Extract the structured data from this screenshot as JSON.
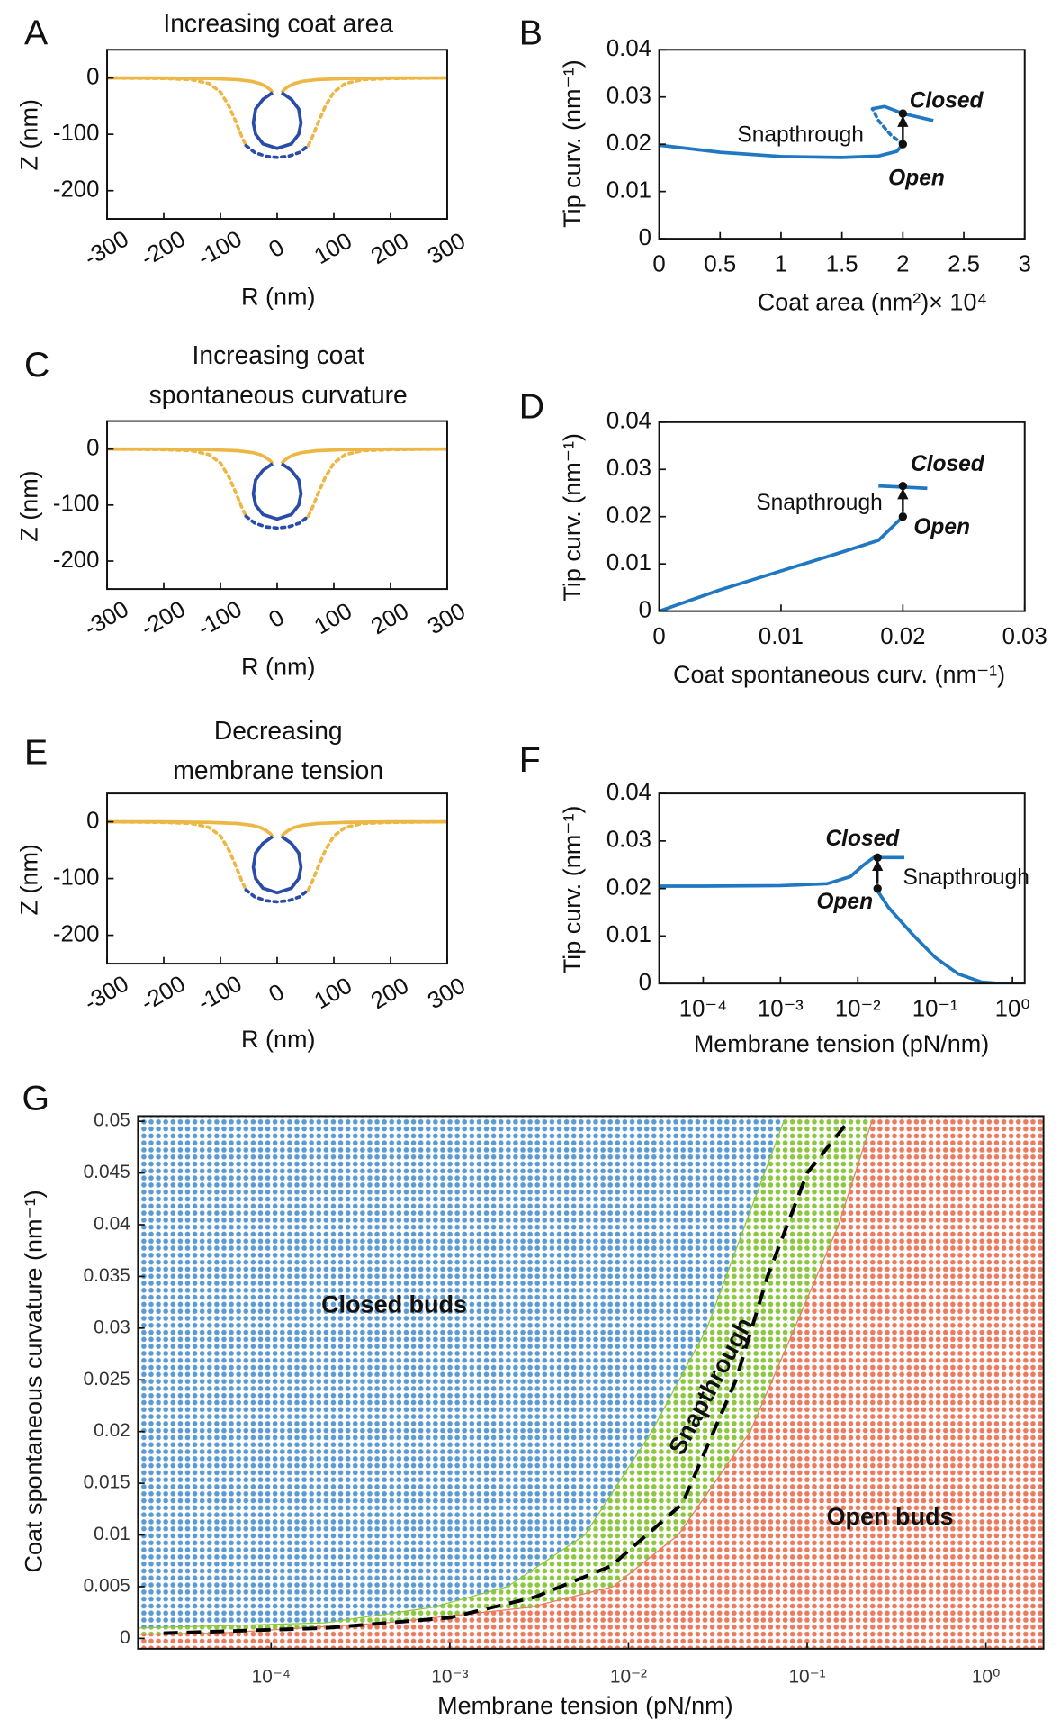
{
  "chart_data": [
    {
      "type": "line",
      "panel": "A",
      "title": [
        "Increasing coat area"
      ],
      "xlabel": "R (nm)",
      "ylabel": "Z (nm)",
      "xlim": [
        -300,
        300
      ],
      "ylim": [
        -250,
        50
      ],
      "xticks": [
        -300,
        -200,
        -100,
        0,
        100,
        200,
        300
      ],
      "yticks": [
        -200,
        -100,
        0
      ],
      "series": [
        {
          "color": "#edb746",
          "dashed": false,
          "x": [
            -300,
            -200,
            -120,
            -70,
            -45,
            -30,
            -20,
            -12,
            -8,
            null,
            8,
            12,
            20,
            30,
            45,
            70,
            120,
            200,
            300
          ],
          "values": [
            0,
            0,
            -1,
            -3,
            -6,
            -10,
            -15,
            -21,
            -26,
            null,
            -26,
            -21,
            -15,
            -10,
            -6,
            -3,
            -1,
            0,
            0
          ]
        },
        {
          "color": "#edb746",
          "dashed": true,
          "x": [
            -300,
            -200,
            -150,
            -120,
            -100,
            -85,
            -72,
            -62,
            -55,
            null,
            55,
            62,
            72,
            85,
            100,
            120,
            150,
            200,
            300
          ],
          "values": [
            0,
            -1,
            -3,
            -10,
            -25,
            -50,
            -80,
            -105,
            -120,
            null,
            -120,
            -105,
            -80,
            -50,
            -25,
            -10,
            -3,
            -1,
            0
          ]
        },
        {
          "color": "#2b4ba8",
          "dashed": false,
          "x": [
            -8,
            -25,
            -38,
            -42,
            -38,
            -25,
            0,
            25,
            38,
            42,
            38,
            25,
            8
          ],
          "values": [
            -26,
            -38,
            -55,
            -80,
            -100,
            -117,
            -125,
            -117,
            -100,
            -80,
            -55,
            -38,
            -26
          ]
        },
        {
          "color": "#2b4ba8",
          "dashed": true,
          "x": [
            -55,
            -40,
            -20,
            0,
            20,
            40,
            55
          ],
          "values": [
            -120,
            -132,
            -139,
            -141,
            -139,
            -132,
            -120
          ]
        }
      ]
    },
    {
      "type": "line",
      "panel": "B",
      "xlabel": "Coat area (nm²)× 10⁴",
      "ylabel": "Tip curv. (nm⁻¹)",
      "xlim": [
        0,
        3
      ],
      "ylim": [
        0,
        0.04
      ],
      "xticks": [
        0,
        0.5,
        1,
        1.5,
        2,
        2.5,
        3
      ],
      "yticks": [
        0,
        0.01,
        0.02,
        0.03,
        0.04
      ],
      "series": [
        {
          "color": "#1f78c1",
          "dashed": false,
          "x": [
            0,
            0.5,
            1,
            1.5,
            1.8,
            1.95,
            2.0
          ],
          "values": [
            0.0198,
            0.0183,
            0.0174,
            0.0172,
            0.0175,
            0.0185,
            0.02
          ]
        },
        {
          "color": "#1f78c1",
          "dashed": true,
          "x": [
            2.0,
            1.9,
            1.8,
            1.75
          ],
          "values": [
            0.02,
            0.022,
            0.025,
            0.0275
          ]
        },
        {
          "color": "#1f78c1",
          "dashed": false,
          "x": [
            1.75,
            1.85,
            2.0,
            2.25
          ],
          "values": [
            0.0275,
            0.028,
            0.0265,
            0.025
          ]
        }
      ],
      "markers": {
        "x": [
          2,
          2
        ],
        "values": [
          0.02,
          0.0265
        ]
      },
      "annotations": [
        "Closed",
        "Snapthrough",
        "Open"
      ]
    },
    {
      "type": "line",
      "panel": "C",
      "title": [
        "Increasing coat",
        "spontaneous curvature"
      ],
      "xlabel": "R (nm)",
      "ylabel": "Z (nm)",
      "xlim": [
        -300,
        300
      ],
      "ylim": [
        -250,
        50
      ],
      "xticks": [
        -300,
        -200,
        -100,
        0,
        100,
        200,
        300
      ],
      "yticks": [
        -200,
        -100,
        0
      ],
      "series": [
        {
          "color": "#edb746",
          "dashed": false,
          "x": [
            -300,
            -200,
            -120,
            -70,
            -45,
            -30,
            -20,
            -12,
            -8,
            null,
            8,
            12,
            20,
            30,
            45,
            70,
            120,
            200,
            300
          ],
          "values": [
            0,
            0,
            -1,
            -3,
            -6,
            -10,
            -15,
            -21,
            -26,
            null,
            -26,
            -21,
            -15,
            -10,
            -6,
            -3,
            -1,
            0,
            0
          ]
        },
        {
          "color": "#edb746",
          "dashed": true,
          "x": [
            -300,
            -200,
            -150,
            -120,
            -100,
            -85,
            -72,
            -62,
            -55,
            null,
            55,
            62,
            72,
            85,
            100,
            120,
            150,
            200,
            300
          ],
          "values": [
            0,
            -1,
            -3,
            -10,
            -25,
            -50,
            -80,
            -105,
            -120,
            null,
            -120,
            -105,
            -80,
            -50,
            -25,
            -10,
            -3,
            -1,
            0
          ]
        },
        {
          "color": "#2b4ba8",
          "dashed": false,
          "x": [
            -8,
            -25,
            -38,
            -42,
            -38,
            -25,
            0,
            25,
            38,
            42,
            38,
            25,
            8
          ],
          "values": [
            -26,
            -38,
            -55,
            -80,
            -100,
            -117,
            -125,
            -117,
            -100,
            -80,
            -55,
            -38,
            -26
          ]
        },
        {
          "color": "#2b4ba8",
          "dashed": true,
          "x": [
            -55,
            -40,
            -20,
            0,
            20,
            40,
            55
          ],
          "values": [
            -120,
            -132,
            -139,
            -141,
            -139,
            -132,
            -120
          ]
        }
      ]
    },
    {
      "type": "line",
      "panel": "D",
      "xlabel": "Coat spontaneous curv. (nm⁻¹)",
      "ylabel": "Tip curv. (nm⁻¹)",
      "xlim": [
        0,
        0.03
      ],
      "ylim": [
        0,
        0.04
      ],
      "xticks": [
        0,
        0.01,
        0.02,
        0.03
      ],
      "yticks": [
        0,
        0.01,
        0.02,
        0.03,
        0.04
      ],
      "series": [
        {
          "color": "#1f78c1",
          "dashed": false,
          "x": [
            0,
            0.005,
            0.01,
            0.015,
            0.018,
            0.02
          ],
          "values": [
            0,
            0.0045,
            0.0085,
            0.0125,
            0.015,
            0.02
          ]
        },
        {
          "color": "#1f78c1",
          "dashed": false,
          "x": [
            0.018,
            0.022
          ],
          "values": [
            0.0265,
            0.026
          ]
        }
      ],
      "markers": {
        "x": [
          0.02,
          0.02
        ],
        "values": [
          0.02,
          0.0265
        ]
      },
      "annotations": [
        "Closed",
        "Snapthrough",
        "Open"
      ]
    },
    {
      "type": "line",
      "panel": "E",
      "title": [
        "Decreasing",
        "membrane tension"
      ],
      "xlabel": "R (nm)",
      "ylabel": "Z (nm)",
      "xlim": [
        -300,
        300
      ],
      "ylim": [
        -250,
        50
      ],
      "xticks": [
        -300,
        -200,
        -100,
        0,
        100,
        200,
        300
      ],
      "yticks": [
        -200,
        -100,
        0
      ],
      "series": [
        {
          "color": "#edb746",
          "dashed": false,
          "x": [
            -300,
            -200,
            -120,
            -70,
            -45,
            -30,
            -20,
            -12,
            -8,
            null,
            8,
            12,
            20,
            30,
            45,
            70,
            120,
            200,
            300
          ],
          "values": [
            0,
            0,
            -1,
            -3,
            -6,
            -10,
            -15,
            -21,
            -26,
            null,
            -26,
            -21,
            -15,
            -10,
            -6,
            -3,
            -1,
            0,
            0
          ]
        },
        {
          "color": "#edb746",
          "dashed": true,
          "x": [
            -300,
            -200,
            -150,
            -120,
            -100,
            -85,
            -72,
            -62,
            -55,
            null,
            55,
            62,
            72,
            85,
            100,
            120,
            150,
            200,
            300
          ],
          "values": [
            0,
            -1,
            -3,
            -10,
            -25,
            -50,
            -80,
            -105,
            -120,
            null,
            -120,
            -105,
            -80,
            -50,
            -25,
            -10,
            -3,
            -1,
            0
          ]
        },
        {
          "color": "#2b4ba8",
          "dashed": false,
          "x": [
            -8,
            -25,
            -38,
            -42,
            -38,
            -25,
            0,
            25,
            38,
            42,
            38,
            25,
            8
          ],
          "values": [
            -26,
            -38,
            -55,
            -80,
            -100,
            -117,
            -125,
            -117,
            -100,
            -80,
            -55,
            -38,
            -26
          ]
        },
        {
          "color": "#2b4ba8",
          "dashed": true,
          "x": [
            -55,
            -40,
            -20,
            0,
            20,
            40,
            55
          ],
          "values": [
            -120,
            -132,
            -139,
            -141,
            -139,
            -132,
            -120
          ]
        }
      ]
    },
    {
      "type": "line",
      "panel": "F",
      "xlabel": "Membrane tension (pN/nm)",
      "ylabel": "Tip curv. (nm⁻¹)",
      "xlog": true,
      "xlim": [
        2.7e-05,
        1.44
      ],
      "ylim": [
        0,
        0.04
      ],
      "xticks": [
        {
          "value": 0.0001,
          "label": "10⁻⁴"
        },
        {
          "value": 0.001,
          "label": "10⁻³"
        },
        {
          "value": 0.01,
          "label": "10⁻²"
        },
        {
          "value": 0.1,
          "label": "10⁻¹"
        },
        {
          "value": 1,
          "label": "10⁰"
        }
      ],
      "yticks": [
        0,
        0.01,
        0.02,
        0.03,
        0.04
      ],
      "series": [
        {
          "color": "#1f78c1",
          "dashed": false,
          "x": [
            2.7e-05,
            0.0001,
            0.001,
            0.004,
            0.008,
            0.012,
            0.016,
            0.02,
            0.04
          ],
          "values": [
            0.0205,
            0.0205,
            0.0206,
            0.021,
            0.0225,
            0.025,
            0.0265,
            0.0265,
            0.0265
          ]
        },
        {
          "color": "#1f78c1",
          "dashed": false,
          "x": [
            0.018,
            0.025,
            0.05,
            0.1,
            0.2,
            0.4,
            0.7,
            1.44
          ],
          "values": [
            0.0195,
            0.016,
            0.0105,
            0.0055,
            0.002,
            0.0003,
            0,
            0
          ]
        }
      ],
      "markers": {
        "x": [
          0.018,
          0.018
        ],
        "values": [
          0.02,
          0.0265
        ]
      },
      "annotations": [
        "Closed",
        "Snapthrough",
        "Open"
      ]
    },
    {
      "type": "region",
      "panel": "G",
      "xlabel": "Membrane tension (pN/nm)",
      "ylabel": "Coat spontaneous curvature (nm⁻¹)",
      "xlog": true,
      "xlim": [
        1.8e-05,
        2.1
      ],
      "ylim": [
        -0.001,
        0.0505
      ],
      "xticks": [
        {
          "value": 0.0001,
          "label": "10⁻⁴"
        },
        {
          "value": 0.001,
          "label": "10⁻³"
        },
        {
          "value": 0.01,
          "label": "10⁻²"
        },
        {
          "value": 0.1,
          "label": "10⁻¹"
        },
        {
          "value": 1,
          "label": "10⁰"
        }
      ],
      "yticks": [
        0,
        0.005,
        0.01,
        0.015,
        0.02,
        0.025,
        0.03,
        0.035,
        0.04,
        0.045,
        0.05
      ],
      "regions": [
        {
          "name": "Closed buds",
          "color": "#5b9bd5"
        },
        {
          "name": "Snapthrough",
          "color": "#8dc63f"
        },
        {
          "name": "Open buds",
          "color": "#ec7a5e"
        }
      ],
      "boundaries": [
        {
          "x": [
            0.074,
            0.045,
            0.0275,
            0.0135,
            0.0057,
            0.0021,
            0.0008,
            0.0002,
            1.8e-05
          ],
          "values": [
            0.05,
            0.04,
            0.03,
            0.02,
            0.01,
            0.005,
            0.003,
            0.0015,
            0.001
          ]
        },
        {
          "x": [
            0.23,
            0.15,
            0.085,
            0.048,
            0.019,
            0.0082,
            0.0028,
            0.00044,
            5e-05,
            1.8e-05
          ],
          "values": [
            0.05,
            0.04,
            0.03,
            0.02,
            0.01,
            0.005,
            0.003,
            0.0015,
            0.0005,
            0.0004
          ]
        }
      ],
      "dashed_line": {
        "color": "#000000",
        "x": [
          2.5e-05,
          0.0002,
          0.001,
          0.003,
          0.008,
          0.02,
          0.04,
          0.06,
          0.1,
          0.17
        ],
        "values": [
          0.0005,
          0.001,
          0.002,
          0.004,
          0.007,
          0.013,
          0.025,
          0.035,
          0.045,
          0.05
        ]
      }
    }
  ]
}
